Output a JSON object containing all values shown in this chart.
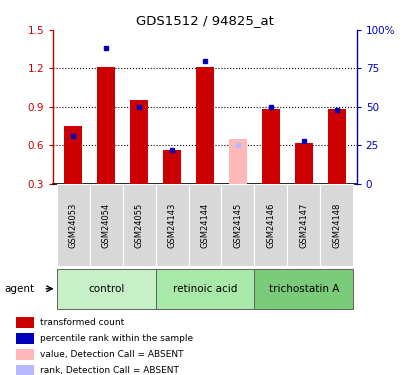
{
  "title": "GDS1512 / 94825_at",
  "categories": [
    "GSM24053",
    "GSM24054",
    "GSM24055",
    "GSM24143",
    "GSM24144",
    "GSM24145",
    "GSM24146",
    "GSM24147",
    "GSM24148"
  ],
  "red_values": [
    0.75,
    1.21,
    0.95,
    0.56,
    1.21,
    0.65,
    0.88,
    0.62,
    0.88
  ],
  "blue_pct": [
    31,
    88,
    50,
    22,
    80,
    25,
    50,
    28,
    48
  ],
  "absent_mask": [
    false,
    false,
    false,
    false,
    false,
    true,
    false,
    false,
    false
  ],
  "ylim_left": [
    0.3,
    1.5
  ],
  "ylim_right": [
    0,
    100
  ],
  "yticks_left": [
    0.3,
    0.6,
    0.9,
    1.2,
    1.5
  ],
  "yticks_right": [
    0,
    25,
    50,
    75,
    100
  ],
  "yticklabels_left": [
    "0.3",
    "0.6",
    "0.9",
    "1.2",
    "1.5"
  ],
  "yticklabels_right": [
    "0",
    "25",
    "50",
    "75",
    "100%"
  ],
  "red_color": "#cc0000",
  "blue_color": "#0000bb",
  "pink_color": "#ffb8b8",
  "lightblue_color": "#b8b8ff",
  "group_names": [
    "control",
    "retinoic acid",
    "trichostatin A"
  ],
  "group_starts": [
    0,
    3,
    6
  ],
  "group_ends": [
    2,
    5,
    8
  ],
  "group_colors": [
    "#c8f0c8",
    "#a8e8a8",
    "#7acc7a"
  ],
  "legend_items": [
    {
      "label": "transformed count",
      "color": "#cc0000"
    },
    {
      "label": "percentile rank within the sample",
      "color": "#0000bb"
    },
    {
      "label": "value, Detection Call = ABSENT",
      "color": "#ffb8b8"
    },
    {
      "label": "rank, Detection Call = ABSENT",
      "color": "#b8b8ff"
    }
  ],
  "agent_label": "agent",
  "grid_dotted_at": [
    0.6,
    0.9,
    1.2
  ]
}
